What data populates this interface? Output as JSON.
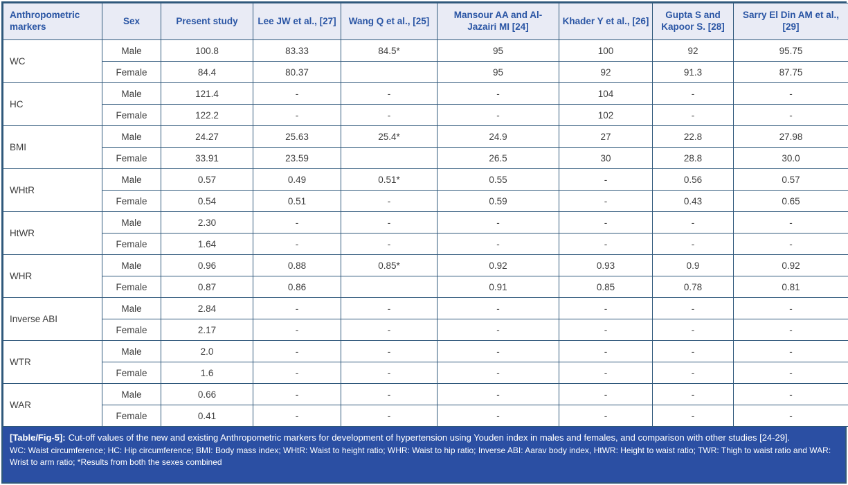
{
  "colors": {
    "border": "#2F587B",
    "header_bg": "#E9EBF5",
    "header_text": "#2A55A4",
    "body_text": "#3D3D3D",
    "caption_bg": "#2B4FA3",
    "caption_text": "#FFFFFF"
  },
  "table": {
    "columns": [
      "Anthropometric markers",
      "Sex",
      "Present study",
      "Lee JW et al., [27]",
      "Wang Q et al., [25]",
      "Mansour AA and Al-Jazairi MI [24]",
      "Khader Y et al., [26]",
      "Gupta S and Kapoor S. [28]",
      "Sarry El Din AM et al., [29]"
    ],
    "groups": [
      {
        "marker": "WC",
        "rows": [
          {
            "sex": "Male",
            "values": [
              "100.8",
              "83.33",
              "84.5*",
              "95",
              "100",
              "92",
              "95.75"
            ]
          },
          {
            "sex": "Female",
            "values": [
              "84.4",
              "80.37",
              "",
              "95",
              "92",
              "91.3",
              "87.75"
            ]
          }
        ]
      },
      {
        "marker": "HC",
        "rows": [
          {
            "sex": "Male",
            "values": [
              "121.4",
              "-",
              "-",
              "-",
              "104",
              "-",
              "-"
            ]
          },
          {
            "sex": "Female",
            "values": [
              "122.2",
              "-",
              "-",
              "-",
              "102",
              "-",
              "-"
            ]
          }
        ]
      },
      {
        "marker": "BMI",
        "rows": [
          {
            "sex": "Male",
            "values": [
              "24.27",
              "25.63",
              "25.4*",
              "24.9",
              "27",
              "22.8",
              "27.98"
            ]
          },
          {
            "sex": "Female",
            "values": [
              "33.91",
              "23.59",
              "",
              "26.5",
              "30",
              "28.8",
              "30.0"
            ]
          }
        ]
      },
      {
        "marker": "WHtR",
        "rows": [
          {
            "sex": "Male",
            "values": [
              "0.57",
              "0.49",
              "0.51*",
              "0.55",
              "-",
              "0.56",
              "0.57"
            ]
          },
          {
            "sex": "Female",
            "values": [
              "0.54",
              "0.51",
              "-",
              "0.59",
              "-",
              "0.43",
              "0.65"
            ]
          }
        ]
      },
      {
        "marker": "HtWR",
        "rows": [
          {
            "sex": "Male",
            "values": [
              "2.30",
              "-",
              "-",
              "-",
              "-",
              "-",
              "-"
            ]
          },
          {
            "sex": "Female",
            "values": [
              "1.64",
              "-",
              "-",
              "-",
              "-",
              "-",
              "-"
            ]
          }
        ]
      },
      {
        "marker": "WHR",
        "rows": [
          {
            "sex": "Male",
            "values": [
              "0.96",
              "0.88",
              "0.85*",
              "0.92",
              "0.93",
              "0.9",
              "0.92"
            ]
          },
          {
            "sex": "Female",
            "values": [
              "0.87",
              "0.86",
              "",
              "0.91",
              "0.85",
              "0.78",
              "0.81"
            ]
          }
        ]
      },
      {
        "marker": "Inverse ABI",
        "rows": [
          {
            "sex": "Male",
            "values": [
              "2.84",
              "-",
              "-",
              "-",
              "-",
              "-",
              "-"
            ]
          },
          {
            "sex": "Female",
            "values": [
              "2.17",
              "-",
              "-",
              "-",
              "-",
              "-",
              "-"
            ]
          }
        ]
      },
      {
        "marker": "WTR",
        "rows": [
          {
            "sex": "Male",
            "values": [
              "2.0",
              "-",
              "-",
              "-",
              "-",
              "-",
              "-"
            ]
          },
          {
            "sex": "Female",
            "values": [
              "1.6",
              "-",
              "-",
              "-",
              "-",
              "-",
              "-"
            ]
          }
        ]
      },
      {
        "marker": "WAR",
        "rows": [
          {
            "sex": "Male",
            "values": [
              "0.66",
              "-",
              "-",
              "-",
              "-",
              "-",
              "-"
            ]
          },
          {
            "sex": "Female",
            "values": [
              "0.41",
              "-",
              "-",
              "-",
              "-",
              "-",
              "-"
            ]
          }
        ]
      }
    ]
  },
  "caption": {
    "tag": "[Table/Fig-5]:",
    "text": "Cut-off values of the new and existing Anthropometric markers for development of hypertension using Youden index in males and females, and comparison with other studies [24-29].",
    "abbreviations": "WC: Waist circumference; HC: Hip circumference; BMI: Body mass index; WHtR: Waist to height ratio; WHR: Waist to hip ratio; Inverse ABI: Aarav body index, HtWR: Height to waist ratio; TWR: Thigh to waist ratio and WAR: Wrist to arm ratio; *Results from both the sexes combined"
  }
}
